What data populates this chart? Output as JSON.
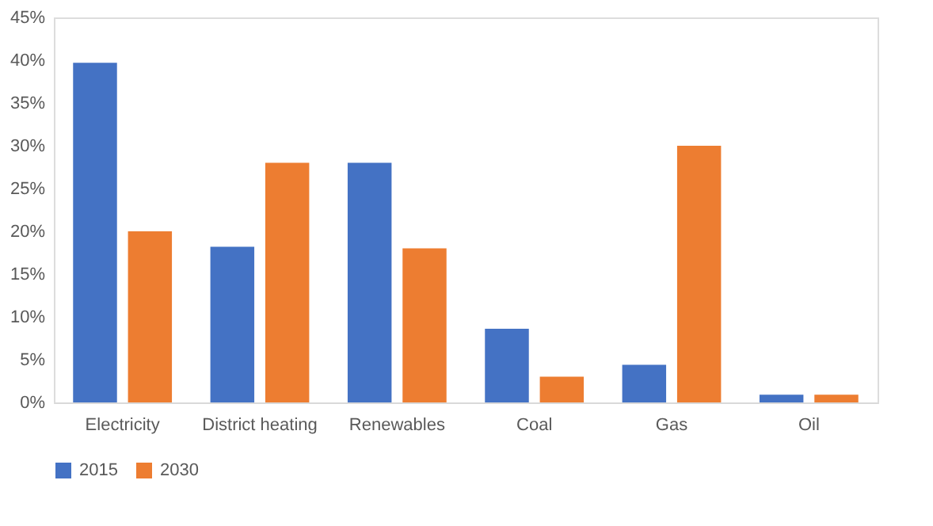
{
  "chart_data": {
    "type": "bar",
    "categories": [
      "Electricity",
      "District heating",
      "Renewables",
      "Coal",
      "Gas",
      "Oil"
    ],
    "series": [
      {
        "name": "2015",
        "color": "#4472c4",
        "values": [
          39.7,
          18.2,
          28.0,
          8.6,
          4.4,
          0.9
        ]
      },
      {
        "name": "2030",
        "color": "#ed7d31",
        "values": [
          20.0,
          28.0,
          18.0,
          3.0,
          30.0,
          0.9
        ]
      }
    ],
    "ylim": [
      0,
      45
    ],
    "yticks": [
      {
        "value": 0,
        "label": "0%"
      },
      {
        "value": 5,
        "label": "5%"
      },
      {
        "value": 10,
        "label": "10%"
      },
      {
        "value": 15,
        "label": "15%"
      },
      {
        "value": 20,
        "label": "20%"
      },
      {
        "value": 25,
        "label": "25%"
      },
      {
        "value": 30,
        "label": "30%"
      },
      {
        "value": 35,
        "label": "35%"
      },
      {
        "value": 40,
        "label": "40%"
      },
      {
        "value": 45,
        "label": "45%"
      }
    ],
    "grid": false,
    "legend": "bottom"
  }
}
